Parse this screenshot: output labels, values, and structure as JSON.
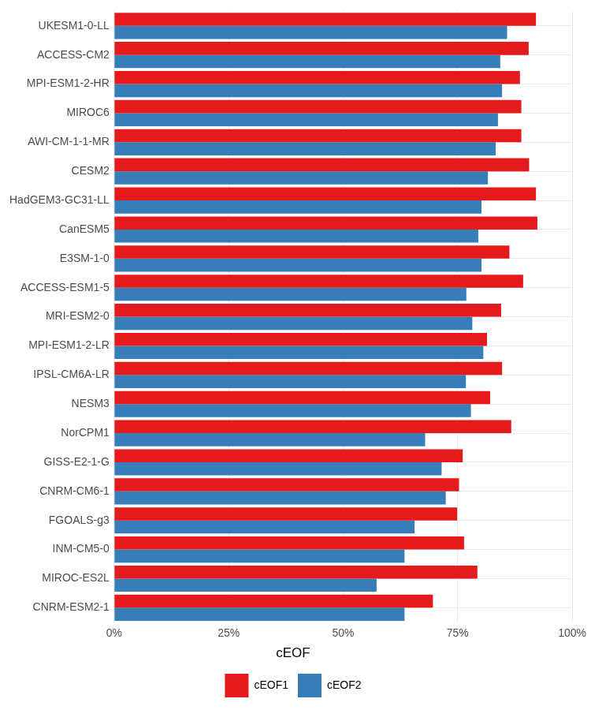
{
  "chart_data": {
    "type": "bar",
    "orientation": "horizontal",
    "categories": [
      "UKESM1-0-LL",
      "ACCESS-CM2",
      "MPI-ESM1-2-HR",
      "MIROC6",
      "AWI-CM-1-1-MR",
      "CESM2",
      "HadGEM3-GC31-LL",
      "CanESM5",
      "E3SM-1-0",
      "ACCESS-ESM1-5",
      "MRI-ESM2-0",
      "MPI-ESM1-2-LR",
      "IPSL-CM6A-LR",
      "NESM3",
      "NorCPM1",
      "GISS-E2-1-G",
      "CNRM-CM6-1",
      "FGOALS-g3",
      "INM-CM5-0",
      "MIROC-ES2L",
      "CNRM-ESM2-1"
    ],
    "series": [
      {
        "name": "cEOF1",
        "color": "#e41a1c",
        "values": [
          92.1,
          90.5,
          88.6,
          88.9,
          88.9,
          90.6,
          92.1,
          92.4,
          86.3,
          89.3,
          84.5,
          81.4,
          84.7,
          82.1,
          86.7,
          76.1,
          75.3,
          74.9,
          76.4,
          79.3,
          69.6
        ]
      },
      {
        "name": "cEOF2",
        "color": "#377eb8",
        "values": [
          85.8,
          84.3,
          84.7,
          83.8,
          83.3,
          81.6,
          80.2,
          79.5,
          80.2,
          76.9,
          78.2,
          80.6,
          76.8,
          77.9,
          67.9,
          71.5,
          72.4,
          65.6,
          63.4,
          57.3,
          63.4
        ]
      }
    ],
    "legend_title": "cEOF",
    "legend": "bottom",
    "xlim": [
      0,
      100
    ],
    "xticks": [
      {
        "value": 0,
        "label": "0%"
      },
      {
        "value": 25,
        "label": "25%"
      },
      {
        "value": 50,
        "label": "50%"
      },
      {
        "value": 75,
        "label": "75%"
      },
      {
        "value": 100,
        "label": "100%"
      }
    ],
    "grid": true
  }
}
